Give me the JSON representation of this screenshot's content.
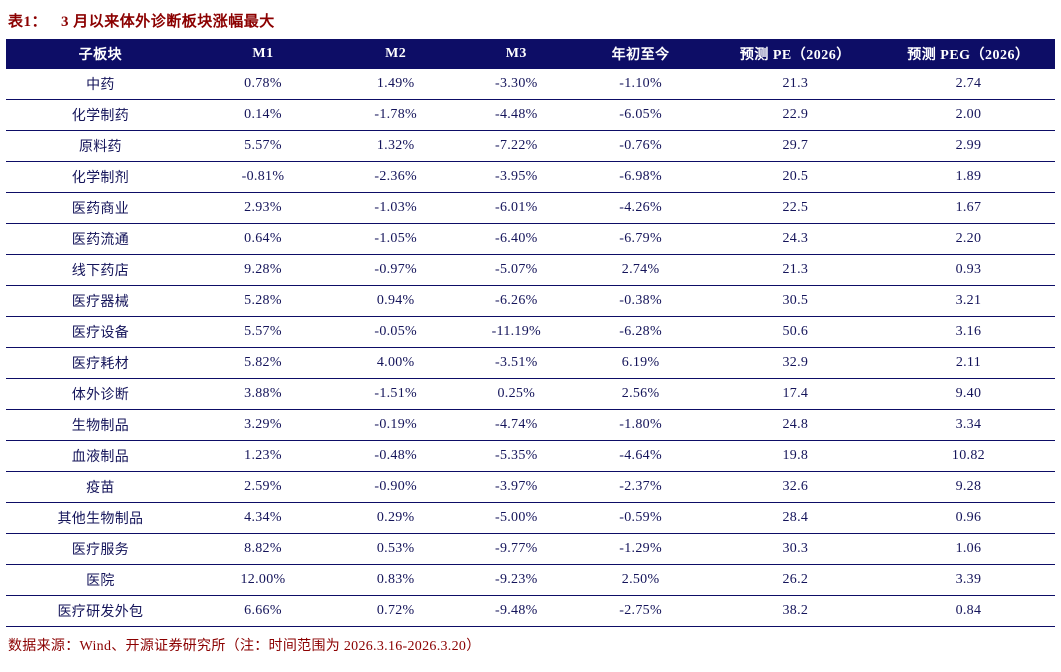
{
  "header": {
    "label": "表1：",
    "title": "3 月以来体外诊断板块涨幅最大"
  },
  "footer": {
    "source_note": "数据来源：Wind、开源证券研究所（注：时间范围为 2026.3.16-2026.3.20）"
  },
  "colors": {
    "title_red": "#8b0000",
    "header_bg": "#0d0d66",
    "row_text": "#14145a",
    "row_border": "#0d0d66",
    "background": "#ffffff"
  },
  "chart_data": {
    "type": "table",
    "title": "表1：3 月以来体外诊断板块涨幅最大",
    "columns": [
      "子板块",
      "M1",
      "M2",
      "M3",
      "年初至今",
      "预测 PE（2026）",
      "预测 PEG（2026）"
    ],
    "rows": [
      [
        "中药",
        "0.78%",
        "1.49%",
        "-3.30%",
        "-1.10%",
        "21.3",
        "2.74"
      ],
      [
        "化学制药",
        "0.14%",
        "-1.78%",
        "-4.48%",
        "-6.05%",
        "22.9",
        "2.00"
      ],
      [
        "原料药",
        "5.57%",
        "1.32%",
        "-7.22%",
        "-0.76%",
        "29.7",
        "2.99"
      ],
      [
        "化学制剂",
        "-0.81%",
        "-2.36%",
        "-3.95%",
        "-6.98%",
        "20.5",
        "1.89"
      ],
      [
        "医药商业",
        "2.93%",
        "-1.03%",
        "-6.01%",
        "-4.26%",
        "22.5",
        "1.67"
      ],
      [
        "医药流通",
        "0.64%",
        "-1.05%",
        "-6.40%",
        "-6.79%",
        "24.3",
        "2.20"
      ],
      [
        "线下药店",
        "9.28%",
        "-0.97%",
        "-5.07%",
        "2.74%",
        "21.3",
        "0.93"
      ],
      [
        "医疗器械",
        "5.28%",
        "0.94%",
        "-6.26%",
        "-0.38%",
        "30.5",
        "3.21"
      ],
      [
        "医疗设备",
        "5.57%",
        "-0.05%",
        "-11.19%",
        "-6.28%",
        "50.6",
        "3.16"
      ],
      [
        "医疗耗材",
        "5.82%",
        "4.00%",
        "-3.51%",
        "6.19%",
        "32.9",
        "2.11"
      ],
      [
        "体外诊断",
        "3.88%",
        "-1.51%",
        "0.25%",
        "2.56%",
        "17.4",
        "9.40"
      ],
      [
        "生物制品",
        "3.29%",
        "-0.19%",
        "-4.74%",
        "-1.80%",
        "24.8",
        "3.34"
      ],
      [
        "血液制品",
        "1.23%",
        "-0.48%",
        "-5.35%",
        "-4.64%",
        "19.8",
        "10.82"
      ],
      [
        "疫苗",
        "2.59%",
        "-0.90%",
        "-3.97%",
        "-2.37%",
        "32.6",
        "9.28"
      ],
      [
        "其他生物制品",
        "4.34%",
        "0.29%",
        "-5.00%",
        "-0.59%",
        "28.4",
        "0.96"
      ],
      [
        "医疗服务",
        "8.82%",
        "0.53%",
        "-9.77%",
        "-1.29%",
        "30.3",
        "1.06"
      ],
      [
        "医院",
        "12.00%",
        "0.83%",
        "-9.23%",
        "2.50%",
        "26.2",
        "3.39"
      ],
      [
        "医疗研发外包",
        "6.66%",
        "0.72%",
        "-9.48%",
        "-2.75%",
        "38.2",
        "0.84"
      ]
    ],
    "column_widths_pct": [
      18,
      13,
      12.3,
      10.7,
      13,
      16.5,
      16.5
    ],
    "layout": {
      "grid": "horizontal-rules-only",
      "header_style": "solid-navy-bar-white-text",
      "alignment": "center"
    }
  }
}
